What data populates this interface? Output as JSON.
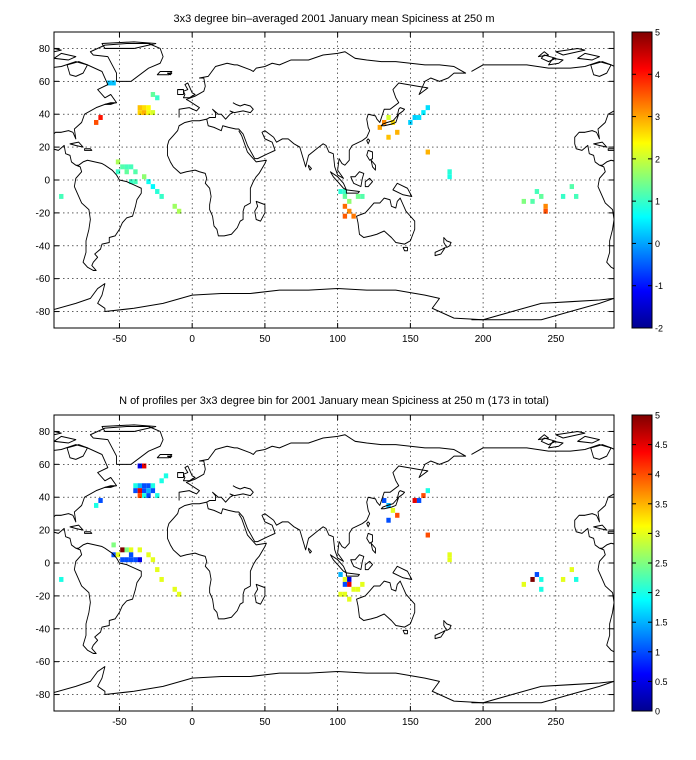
{
  "panels": [
    {
      "title": "3x3 degree bin–averaged 2001 January mean Spiciness at 250 m",
      "xlim": [
        -95,
        290
      ],
      "ylim": [
        -90,
        90
      ],
      "xticks": [
        -50,
        0,
        50,
        100,
        150,
        200,
        250
      ],
      "yticks": [
        -80,
        -60,
        -40,
        -20,
        0,
        20,
        40,
        60,
        80
      ],
      "colorbar": {
        "min": -2,
        "max": 5,
        "ticks": [
          -2,
          -1,
          0,
          1,
          2,
          3,
          4,
          5
        ]
      },
      "cells": [
        [
          -57,
          59,
          0.2
        ],
        [
          -54,
          59,
          0.2
        ],
        [
          -27,
          52,
          1.3
        ],
        [
          -24,
          50,
          1.0
        ],
        [
          -36,
          44,
          2.8
        ],
        [
          -33,
          44,
          2.6
        ],
        [
          -30,
          44,
          2.4
        ],
        [
          -36,
          41,
          2.7
        ],
        [
          -33,
          41,
          2.9
        ],
        [
          -30,
          41,
          2.3
        ],
        [
          -27,
          41,
          2.1
        ],
        [
          -63,
          38,
          4.0
        ],
        [
          -66,
          35,
          3.6
        ],
        [
          -51,
          11,
          1.8
        ],
        [
          -48,
          8,
          1.2
        ],
        [
          -45,
          8,
          1.1
        ],
        [
          -42,
          8,
          1.1
        ],
        [
          -51,
          5,
          1.0
        ],
        [
          -45,
          5,
          1.3
        ],
        [
          -39,
          5,
          1.2
        ],
        [
          -33,
          2,
          1.6
        ],
        [
          -39,
          -1,
          1.1
        ],
        [
          -42,
          -1,
          1.0
        ],
        [
          -30,
          -1,
          0.7
        ],
        [
          -27,
          -4,
          0.6
        ],
        [
          -24,
          -7,
          0.9
        ],
        [
          -21,
          -10,
          1.0
        ],
        [
          -90,
          -10,
          1.1
        ],
        [
          -12,
          -16,
          1.7
        ],
        [
          -9,
          -19,
          1.8
        ],
        [
          129,
          32,
          3.0
        ],
        [
          132,
          35,
          3.2
        ],
        [
          135,
          38,
          2.1
        ],
        [
          138,
          35,
          2.6
        ],
        [
          141,
          29,
          2.9
        ],
        [
          135,
          26,
          2.8
        ],
        [
          150,
          35,
          0.3
        ],
        [
          153,
          38,
          0.3
        ],
        [
          156,
          38,
          0.4
        ],
        [
          159,
          41,
          0.5
        ],
        [
          162,
          44,
          0.4
        ],
        [
          162,
          17,
          2.9
        ],
        [
          177,
          5,
          0.9
        ],
        [
          177,
          2,
          0.8
        ],
        [
          102,
          -7,
          0.9
        ],
        [
          105,
          -7,
          1.0
        ],
        [
          105,
          -10,
          1.3
        ],
        [
          108,
          -13,
          1.6
        ],
        [
          105,
          -16,
          3.4
        ],
        [
          108,
          -19,
          3.2
        ],
        [
          105,
          -22,
          3.5
        ],
        [
          111,
          -22,
          3.3
        ],
        [
          114,
          -10,
          1.4
        ],
        [
          117,
          -10,
          1.2
        ],
        [
          228,
          -13,
          1.5
        ],
        [
          234,
          -13,
          1.2
        ],
        [
          237,
          -7,
          1.1
        ],
        [
          240,
          -10,
          1.3
        ],
        [
          243,
          -16,
          3.2
        ],
        [
          243,
          -19,
          3.6
        ],
        [
          255,
          -10,
          1.0
        ],
        [
          261,
          -4,
          1.2
        ],
        [
          264,
          -10,
          1.1
        ]
      ]
    },
    {
      "title": "N of profiles per 3x3 degree bin for 2001 January mean Spiciness at 250 m (173 in total)",
      "xlim": [
        -95,
        290
      ],
      "ylim": [
        -90,
        90
      ],
      "xticks": [
        -50,
        0,
        50,
        100,
        150,
        200,
        250
      ],
      "yticks": [
        -80,
        -60,
        -40,
        -20,
        0,
        20,
        40,
        60,
        80
      ],
      "colorbar": {
        "min": 0,
        "max": 5,
        "ticks": [
          0,
          0.5,
          1,
          1.5,
          2,
          2.5,
          3,
          3.5,
          4,
          4.5,
          5
        ]
      },
      "cells": [
        [
          -36,
          59,
          0.5
        ],
        [
          -33,
          59,
          4.5
        ],
        [
          -18,
          53,
          2.0
        ],
        [
          -21,
          50,
          2.0
        ],
        [
          -39,
          47,
          2.0
        ],
        [
          -36,
          47,
          1.5
        ],
        [
          -33,
          47,
          1.0
        ],
        [
          -30,
          47,
          1.0
        ],
        [
          -27,
          47,
          2.0
        ],
        [
          -39,
          44,
          1.0
        ],
        [
          -36,
          44,
          4.5
        ],
        [
          -33,
          44,
          1.0
        ],
        [
          -30,
          44,
          1.5
        ],
        [
          -27,
          44,
          1.0
        ],
        [
          -36,
          41,
          4.0
        ],
        [
          -33,
          41,
          2.0
        ],
        [
          -30,
          41,
          1.0
        ],
        [
          -24,
          41,
          2.0
        ],
        [
          -63,
          38,
          1.0
        ],
        [
          -66,
          35,
          2.0
        ],
        [
          -54,
          11,
          2.5
        ],
        [
          -48,
          8,
          5.0
        ],
        [
          -45,
          8,
          2.5
        ],
        [
          -42,
          8,
          3.0
        ],
        [
          -36,
          8,
          3.0
        ],
        [
          -54,
          5,
          1.0
        ],
        [
          -51,
          5,
          3.0
        ],
        [
          -42,
          5,
          1.0
        ],
        [
          -30,
          5,
          3.0
        ],
        [
          -48,
          2,
          1.0
        ],
        [
          -45,
          2,
          1.0
        ],
        [
          -42,
          2,
          1.0
        ],
        [
          -39,
          2,
          1.0
        ],
        [
          -36,
          2,
          0.5
        ],
        [
          -27,
          2,
          3.0
        ],
        [
          -24,
          -4,
          3.0
        ],
        [
          -21,
          -10,
          3.0
        ],
        [
          -90,
          -10,
          2.0
        ],
        [
          -12,
          -16,
          3.0
        ],
        [
          -9,
          -19,
          3.0
        ],
        [
          132,
          38,
          1.0
        ],
        [
          135,
          35,
          1.5
        ],
        [
          138,
          32,
          3.0
        ],
        [
          141,
          29,
          4.0
        ],
        [
          135,
          26,
          1.0
        ],
        [
          153,
          38,
          4.5
        ],
        [
          156,
          38,
          1.0
        ],
        [
          159,
          41,
          4.0
        ],
        [
          162,
          44,
          2.0
        ],
        [
          162,
          17,
          4.0
        ],
        [
          177,
          5,
          3.0
        ],
        [
          177,
          2,
          3.0
        ],
        [
          102,
          -7,
          1.5
        ],
        [
          105,
          -10,
          3.0
        ],
        [
          108,
          -10,
          0.5
        ],
        [
          105,
          -13,
          1.0
        ],
        [
          108,
          -13,
          4.5
        ],
        [
          111,
          -16,
          3.0
        ],
        [
          114,
          -16,
          3.0
        ],
        [
          117,
          -13,
          3.0
        ],
        [
          102,
          -19,
          3.0
        ],
        [
          105,
          -19,
          3.0
        ],
        [
          108,
          -22,
          3.0
        ],
        [
          228,
          -13,
          3.0
        ],
        [
          234,
          -10,
          5.0
        ],
        [
          237,
          -7,
          1.0
        ],
        [
          240,
          -10,
          2.0
        ],
        [
          240,
          -16,
          2.0
        ],
        [
          255,
          -10,
          3.0
        ],
        [
          261,
          -4,
          3.0
        ],
        [
          264,
          -10,
          2.0
        ]
      ]
    }
  ]
}
